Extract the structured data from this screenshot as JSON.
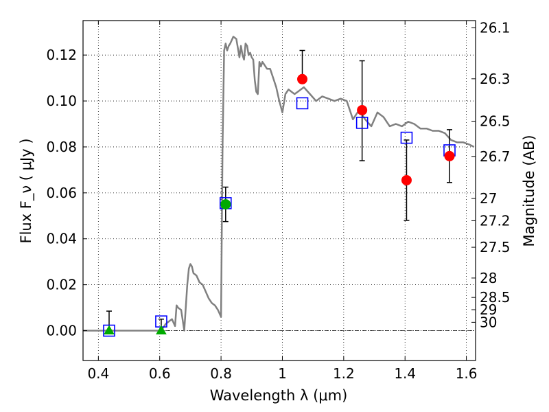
{
  "chart_data": {
    "type": "scatter",
    "xlabel": "Wavelength  λ (μm)",
    "ylabel": "Flux  F_ν  ( μJy )",
    "ylabel_right": "Magnitude (AB)",
    "xlim": [
      0.35,
      1.63
    ],
    "ylim": [
      -0.013,
      0.135
    ],
    "grid": true,
    "x_ticks": [
      {
        "value": 0.4,
        "label": "0.4"
      },
      {
        "value": 0.6,
        "label": "0.6"
      },
      {
        "value": 0.8,
        "label": "0.8"
      },
      {
        "value": 1.0,
        "label": "1"
      },
      {
        "value": 1.2,
        "label": "1.2"
      },
      {
        "value": 1.4,
        "label": "1.4"
      },
      {
        "value": 1.6,
        "label": "1.6"
      }
    ],
    "y_ticks": [
      {
        "value": 0.0,
        "label": "0.00"
      },
      {
        "value": 0.02,
        "label": "0.02"
      },
      {
        "value": 0.04,
        "label": "0.04"
      },
      {
        "value": 0.06,
        "label": "0.06"
      },
      {
        "value": 0.08,
        "label": "0.08"
      },
      {
        "value": 0.1,
        "label": "0.10"
      },
      {
        "value": 0.12,
        "label": "0.12"
      }
    ],
    "mag_ticks": [
      {
        "value": 26.1,
        "label": "26.1"
      },
      {
        "value": 26.3,
        "label": "26.3"
      },
      {
        "value": 26.5,
        "label": "26.5"
      },
      {
        "value": 26.7,
        "label": "26.7"
      },
      {
        "value": 27.0,
        "label": "27"
      },
      {
        "value": 27.2,
        "label": "27.2"
      },
      {
        "value": 27.5,
        "label": "27.5"
      },
      {
        "value": 28.0,
        "label": "28"
      },
      {
        "value": 28.5,
        "label": "28.5"
      },
      {
        "value": 29.0,
        "label": "29"
      },
      {
        "value": 30.0,
        "label": "30"
      }
    ],
    "model_spectrum": {
      "color": "#808080",
      "x": [
        0.35,
        0.6,
        0.61,
        0.62,
        0.63,
        0.64,
        0.65,
        0.655,
        0.66,
        0.67,
        0.68,
        0.69,
        0.695,
        0.7,
        0.705,
        0.71,
        0.72,
        0.73,
        0.74,
        0.75,
        0.76,
        0.77,
        0.78,
        0.79,
        0.8,
        0.805,
        0.81,
        0.815,
        0.82,
        0.825,
        0.83,
        0.84,
        0.85,
        0.86,
        0.865,
        0.87,
        0.875,
        0.88,
        0.885,
        0.89,
        0.895,
        0.9,
        0.905,
        0.91,
        0.915,
        0.92,
        0.925,
        0.93,
        0.935,
        0.94,
        0.95,
        0.96,
        0.97,
        0.98,
        0.99,
        1.0,
        1.01,
        1.02,
        1.03,
        1.04,
        1.05,
        1.07,
        1.09,
        1.11,
        1.13,
        1.15,
        1.17,
        1.19,
        1.21,
        1.23,
        1.25,
        1.27,
        1.29,
        1.31,
        1.33,
        1.35,
        1.37,
        1.39,
        1.41,
        1.43,
        1.45,
        1.47,
        1.49,
        1.51,
        1.53,
        1.55,
        1.57,
        1.59,
        1.61,
        1.625
      ],
      "y": [
        0.0,
        0.0,
        0.001,
        0.003,
        0.004,
        0.005,
        0.002,
        0.011,
        0.01,
        0.009,
        0.0,
        0.02,
        0.027,
        0.029,
        0.028,
        0.025,
        0.024,
        0.021,
        0.02,
        0.017,
        0.014,
        0.012,
        0.011,
        0.009,
        0.006,
        0.08,
        0.122,
        0.125,
        0.122,
        0.124,
        0.125,
        0.128,
        0.127,
        0.119,
        0.124,
        0.12,
        0.118,
        0.125,
        0.124,
        0.12,
        0.121,
        0.119,
        0.118,
        0.109,
        0.104,
        0.103,
        0.117,
        0.115,
        0.117,
        0.116,
        0.114,
        0.114,
        0.11,
        0.106,
        0.1,
        0.095,
        0.103,
        0.105,
        0.104,
        0.103,
        0.104,
        0.106,
        0.103,
        0.1,
        0.102,
        0.101,
        0.1,
        0.101,
        0.1,
        0.092,
        0.096,
        0.092,
        0.089,
        0.095,
        0.093,
        0.089,
        0.09,
        0.089,
        0.091,
        0.09,
        0.088,
        0.088,
        0.087,
        0.087,
        0.086,
        0.083,
        0.082,
        0.082,
        0.081,
        0.08
      ]
    },
    "model_points": {
      "marker": "open-square",
      "color": "#0000ff",
      "x": [
        0.435,
        0.605,
        0.815,
        1.065,
        1.26,
        1.405,
        1.545
      ],
      "y": [
        0.0,
        0.004,
        0.0555,
        0.099,
        0.0905,
        0.084,
        0.0785
      ]
    },
    "optical_detections": {
      "marker": "filled-circle",
      "color": "#00aa00",
      "x": [
        0.815
      ],
      "y": [
        0.055
      ],
      "yerr_low": [
        0.0075
      ],
      "yerr_high": [
        0.0075
      ]
    },
    "optical_limits": {
      "marker": "filled-triangle",
      "color": "#00aa00",
      "x": [
        0.435,
        0.605
      ],
      "y": [
        0.0,
        0.0
      ],
      "yerr_low": [
        0.0,
        0.0
      ],
      "yerr_high": [
        0.0085,
        0.005
      ]
    },
    "nir_detections": {
      "marker": "filled-circle",
      "color": "#ff0000",
      "x": [
        1.065,
        1.26,
        1.405,
        1.545
      ],
      "y": [
        0.1095,
        0.096,
        0.0655,
        0.076
      ],
      "yerr_low": [
        0.0,
        0.022,
        0.0175,
        0.0115
      ],
      "yerr_high": [
        0.0125,
        0.0215,
        0.0175,
        0.0115
      ]
    }
  }
}
